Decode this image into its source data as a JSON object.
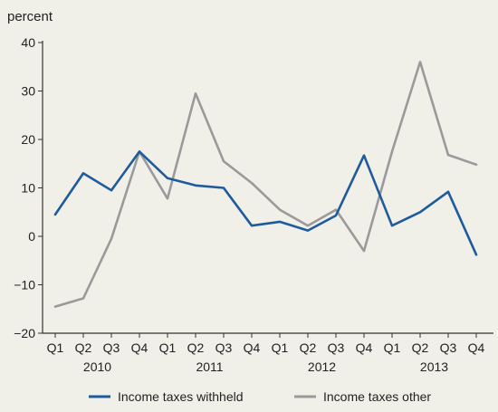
{
  "chart_data": {
    "type": "line",
    "ylabel": "percent",
    "ylim": [
      -20,
      40
    ],
    "y_ticks": [
      "40",
      "30",
      "20",
      "10",
      "0",
      "−10",
      "−20"
    ],
    "y_tick_values": [
      40,
      30,
      20,
      10,
      0,
      -10,
      -20
    ],
    "categories": [
      "Q1",
      "Q2",
      "Q3",
      "Q4",
      "Q1",
      "Q2",
      "Q3",
      "Q4",
      "Q1",
      "Q2",
      "Q3",
      "Q4",
      "Q1",
      "Q2",
      "Q3",
      "Q4"
    ],
    "years": [
      {
        "label": "2010",
        "center_index": 1.5
      },
      {
        "label": "2011",
        "center_index": 5.5
      },
      {
        "label": "2012",
        "center_index": 9.5
      },
      {
        "label": "2013",
        "center_index": 13.5
      }
    ],
    "legend_position": "bottom",
    "grid": false,
    "series": [
      {
        "name": "Income taxes withheld",
        "color": "#1f5b9c",
        "values": [
          4.5,
          13.0,
          9.5,
          17.5,
          12.0,
          10.5,
          10.0,
          2.2,
          3.0,
          1.2,
          4.3,
          16.7,
          2.2,
          5.0,
          9.2,
          -3.8
        ]
      },
      {
        "name": "Income taxes other",
        "color": "#9a9a9a",
        "values": [
          -14.5,
          -12.8,
          -0.5,
          17.5,
          7.8,
          29.5,
          15.5,
          11.0,
          5.5,
          2.2,
          5.5,
          -3.0,
          17.5,
          36.0,
          16.8,
          14.8
        ]
      }
    ]
  }
}
